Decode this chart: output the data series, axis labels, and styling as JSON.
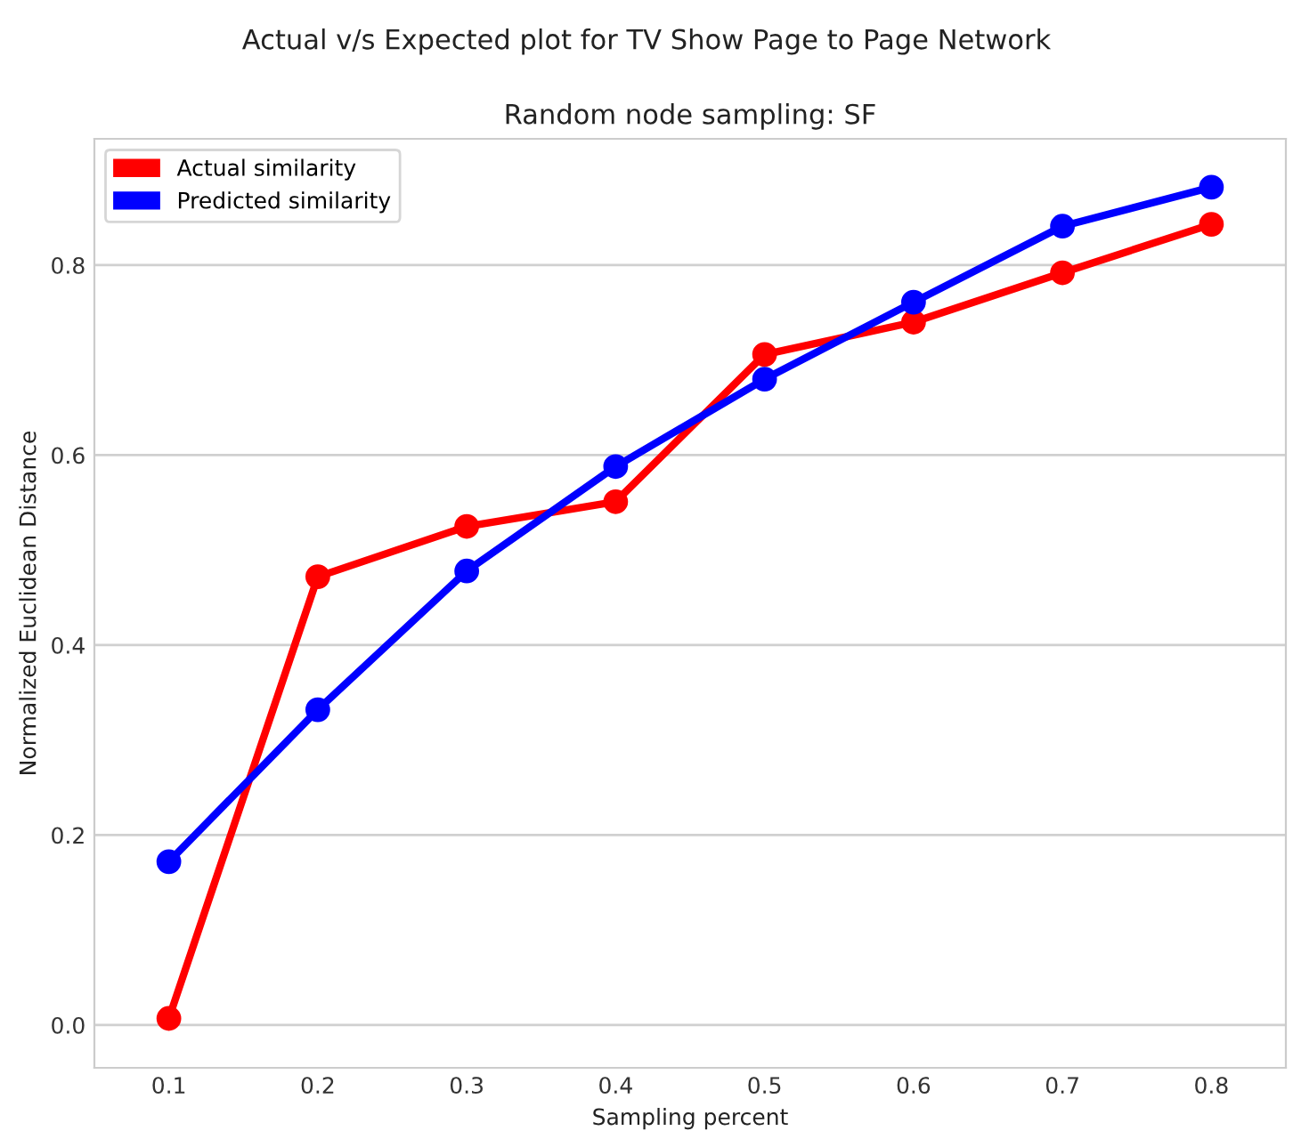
{
  "chart_data": {
    "type": "line",
    "title": "Random node sampling: SF",
    "subtitle": "Actual v/s Expected plot for TV Show Page to Page Network",
    "xlabel": "Sampling percent",
    "ylabel": "Normalized Euclidean Distance",
    "categories": [
      "0.1",
      "0.2",
      "0.3",
      "0.4",
      "0.5",
      "0.6",
      "0.7",
      "0.8"
    ],
    "series": [
      {
        "name": "Actual similarity",
        "color": "#ff0000",
        "values": [
          0.007,
          0.472,
          0.525,
          0.551,
          0.706,
          0.74,
          0.792,
          0.843
        ]
      },
      {
        "name": "Predicted similarity",
        "color": "#0000ff",
        "values": [
          0.172,
          0.332,
          0.478,
          0.588,
          0.68,
          0.761,
          0.841,
          0.882
        ]
      }
    ],
    "ylim": [
      -0.045,
      0.933
    ],
    "yticks": [
      {
        "value": 0,
        "label": "0.0"
      },
      0.2,
      0.4,
      0.6,
      0.8
    ],
    "grid": "y",
    "legend": "top left",
    "marker": "circle",
    "line_style": "solid"
  }
}
